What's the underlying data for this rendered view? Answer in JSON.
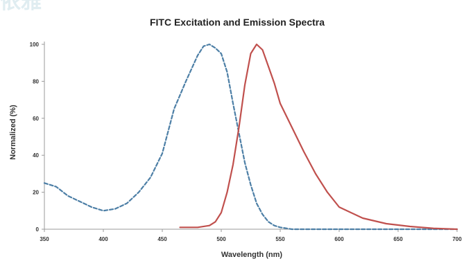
{
  "chart_data": {
    "type": "line",
    "title": "FITC Excitation and Emission Spectra",
    "xlabel": "Wavelength (nm)",
    "ylabel": "Normalized (%)",
    "xlim": [
      350,
      700
    ],
    "ylim": [
      0,
      100
    ],
    "xticks": [
      350,
      400,
      450,
      500,
      550,
      600,
      650,
      700
    ],
    "yticks": [
      0,
      20,
      40,
      60,
      80,
      100
    ],
    "grid": false,
    "legend": false,
    "series": [
      {
        "color": "#4d7fa6",
        "dash": "dashed",
        "x": [
          350,
          360,
          370,
          380,
          390,
          400,
          410,
          420,
          430,
          440,
          450,
          460,
          470,
          480,
          485,
          490,
          495,
          500,
          505,
          510,
          515,
          520,
          525,
          530,
          535,
          540,
          545,
          550,
          560,
          600,
          650,
          700
        ],
        "y": [
          25,
          23,
          18,
          15,
          12,
          10,
          11,
          14,
          20,
          28,
          41,
          65,
          80,
          94,
          99,
          100,
          98,
          95,
          85,
          68,
          52,
          36,
          24,
          14,
          8,
          4,
          2,
          1,
          0,
          0,
          0,
          0
        ]
      },
      {
        "color": "#c0504d",
        "dash": "solid",
        "x": [
          465,
          480,
          490,
          495,
          500,
          505,
          510,
          515,
          520,
          525,
          530,
          535,
          540,
          545,
          550,
          560,
          570,
          580,
          590,
          600,
          620,
          640,
          660,
          680,
          700
        ],
        "y": [
          1,
          1,
          2,
          4,
          9,
          20,
          35,
          55,
          78,
          95,
          100,
          97,
          88,
          79,
          68,
          55,
          42,
          30,
          20,
          12,
          6,
          3,
          1.5,
          0.5,
          0
        ]
      }
    ]
  },
  "watermark": {
    "text": "依雅",
    "color": "#d6e7ed"
  }
}
